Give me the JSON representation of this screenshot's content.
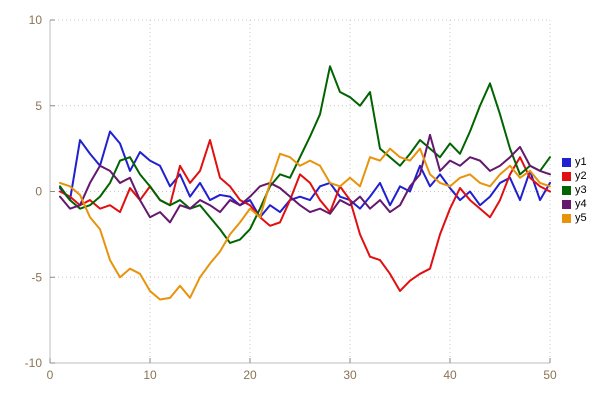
{
  "colors": {
    "background": "#ffffff",
    "grid": "#c9c9c9",
    "axis": "#bdbdbd",
    "tick_text": "#8b7355"
  },
  "chart_data": {
    "type": "line",
    "title": "",
    "xlabel": "",
    "ylabel": "",
    "x_range": [
      0,
      50
    ],
    "y_range": [
      -10,
      10
    ],
    "x_ticks": [
      0,
      10,
      20,
      30,
      40,
      50
    ],
    "y_ticks": [
      -10,
      -5,
      0,
      5,
      10
    ],
    "grid": "dotted",
    "legend_position": "right-outside",
    "x_start": 1,
    "series": [
      {
        "name": "y1",
        "color": "#2020d0",
        "values": [
          0.2,
          -0.5,
          3,
          2.2,
          1.5,
          3.5,
          2.8,
          1.2,
          2.3,
          1.8,
          1.5,
          0.3,
          1,
          -0.3,
          0.5,
          -0.5,
          -0.2,
          -0.3,
          -0.8,
          -0.5,
          -1.5,
          -0.8,
          -1.2,
          -0.5,
          -0.3,
          -0.5,
          0.3,
          0.5,
          -0.3,
          -0.5,
          -1,
          -0.3,
          0.5,
          -0.8,
          0.3,
          0,
          1.5,
          0.3,
          1,
          0.2,
          -0.5,
          0,
          -0.8,
          -0.3,
          0.5,
          0.8,
          -0.5,
          1.2,
          -0.5,
          0.5
        ]
      },
      {
        "name": "y2",
        "color": "#e01010",
        "values": [
          0,
          -0.3,
          -0.8,
          -0.5,
          -1,
          -0.8,
          -1.2,
          0.2,
          -0.5,
          0.3,
          -0.5,
          -0.8,
          1.5,
          0.5,
          1.2,
          3,
          0.8,
          0.3,
          -0.5,
          -0.8,
          -1.5,
          -2,
          -1.8,
          -0.5,
          1,
          0.5,
          -0.5,
          -1.2,
          0.3,
          -0.5,
          -2.5,
          -3.8,
          -4,
          -4.8,
          -5.8,
          -5.2,
          -4.8,
          -4.5,
          -2.5,
          -1,
          0.2,
          -0.5,
          -1,
          -1.5,
          -0.5,
          1,
          2,
          0.8,
          0.3,
          0
        ]
      },
      {
        "name": "y3",
        "color": "#006400",
        "values": [
          0.3,
          -0.5,
          -1,
          -0.8,
          -0.3,
          0.5,
          1.8,
          2,
          1,
          0.3,
          -0.5,
          -0.8,
          -0.5,
          -1,
          -0.8,
          -1.5,
          -2.2,
          -3,
          -2.8,
          -2.2,
          -1,
          0.3,
          1,
          0.8,
          2,
          3.2,
          4.5,
          7.3,
          5.8,
          5.5,
          5,
          5.8,
          2.5,
          2,
          1.5,
          2.2,
          3,
          2.5,
          2,
          2.8,
          2.2,
          3.5,
          5,
          6.3,
          4.5,
          2.5,
          1,
          1.5,
          1.2,
          2
        ]
      },
      {
        "name": "y4",
        "color": "#64186e",
        "values": [
          -0.3,
          -1,
          -0.8,
          0.5,
          1.5,
          1.2,
          0.5,
          0.8,
          -0.5,
          -1.5,
          -1.2,
          -1.8,
          -0.8,
          -1,
          -0.5,
          -0.8,
          -1.2,
          -0.5,
          -0.8,
          -0.3,
          0.3,
          0.5,
          0.2,
          -0.3,
          -0.8,
          -1.2,
          -1,
          -1.3,
          -0.5,
          -0.8,
          -0.3,
          -1,
          -0.5,
          -1.2,
          -0.8,
          0.3,
          1,
          3.3,
          1.2,
          1.8,
          1.5,
          2,
          1.8,
          1.2,
          1.5,
          2,
          2.6,
          1.5,
          1.2,
          1
        ]
      },
      {
        "name": "y5",
        "color": "#e8930c",
        "values": [
          0.5,
          0.3,
          -0.2,
          -1.5,
          -2.2,
          -4,
          -5,
          -4.5,
          -4.8,
          -5.8,
          -6.3,
          -6.2,
          -5.5,
          -6.2,
          -5,
          -4.2,
          -3.5,
          -2.5,
          -1.8,
          -1,
          -1.5,
          0.5,
          2.2,
          2,
          1.5,
          1.8,
          1.5,
          0.5,
          0.3,
          0.8,
          0.3,
          2,
          1.8,
          2.5,
          2,
          1.8,
          2.5,
          1,
          0.5,
          0.3,
          0.8,
          1,
          0.5,
          0.3,
          1,
          1.5,
          0.8,
          1.2,
          0.5,
          0.3
        ]
      }
    ]
  }
}
